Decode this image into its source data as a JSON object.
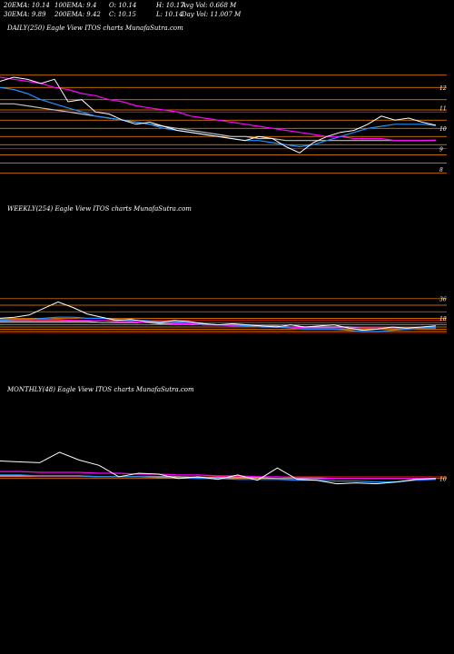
{
  "stats": {
    "row1": [
      "20EMA: 10.14",
      "100EMA: 9.4",
      "O: 10.14",
      "H: 10.17",
      "Avg Vol: 0.668  M"
    ],
    "row2": [
      "30EMA: 9.89",
      "200EMA: 9.42",
      "C: 10.15",
      "L: 10.14",
      "Day Vol: 11.007 M"
    ]
  },
  "colors": {
    "background": "#000000",
    "price": "#ffffff",
    "ema_short": "#1e90ff",
    "ema_mid": "#ff00ff",
    "ema_long": "#c0c0c0",
    "levels": "#ff8c00",
    "levels_red": "#ff2222"
  },
  "chart_data": [
    {
      "type": "line",
      "panel": "daily",
      "label": "DAILY(250) Eagle   View  ITOS charts MunafaSutra.com",
      "y_ticks": [
        "12",
        "11",
        "10",
        "9",
        "8"
      ],
      "series": [
        {
          "role": "price",
          "values": [
            12.3,
            12.5,
            12.4,
            12.2,
            12.4,
            11.3,
            11.4,
            10.8,
            10.7,
            10.4,
            10.2,
            10.3,
            10.1,
            9.9,
            9.8,
            9.7,
            9.6,
            9.5,
            9.4,
            9.6,
            9.5,
            9.1,
            8.8,
            9.3,
            9.6,
            9.8,
            9.9,
            10.2,
            10.6,
            10.4,
            10.5,
            10.3,
            10.15
          ]
        },
        {
          "role": "ema_short",
          "values": [
            12.0,
            11.9,
            11.7,
            11.4,
            11.2,
            11.0,
            10.8,
            10.6,
            10.5,
            10.4,
            10.3,
            10.2,
            10.0,
            9.9,
            9.8,
            9.7,
            9.6,
            9.5,
            9.4,
            9.4,
            9.3,
            9.2,
            9.1,
            9.2,
            9.4,
            9.6,
            9.8,
            10.0,
            10.1,
            10.2,
            10.2,
            10.2,
            10.14
          ]
        },
        {
          "role": "ema_mid",
          "values": [
            12.5,
            12.4,
            12.3,
            12.2,
            12.0,
            11.9,
            11.7,
            11.6,
            11.4,
            11.3,
            11.1,
            11.0,
            10.9,
            10.8,
            10.6,
            10.5,
            10.4,
            10.3,
            10.2,
            10.1,
            10.0,
            9.9,
            9.8,
            9.7,
            9.6,
            9.6,
            9.5,
            9.5,
            9.5,
            9.4,
            9.4,
            9.4,
            9.4
          ]
        },
        {
          "role": "ema_long",
          "values": [
            11.2,
            11.2,
            11.1,
            11.0,
            10.9,
            10.8,
            10.7,
            10.6,
            10.5,
            10.4,
            10.3,
            10.2,
            10.1,
            10.0,
            9.9,
            9.8,
            9.7,
            9.6,
            9.6,
            9.5,
            9.5,
            9.4,
            9.4,
            9.4,
            9.4,
            9.4,
            9.4,
            9.4,
            9.4,
            9.4,
            9.4,
            9.4,
            9.42
          ]
        }
      ],
      "levels": [
        12.6,
        12.0,
        11.4,
        10.9,
        10.4,
        10.0,
        9.6,
        9.2,
        8.7,
        8.3,
        7.8
      ],
      "levels_red": [
        10.8,
        9.0
      ],
      "ylim": [
        6.5,
        14.5
      ]
    },
    {
      "type": "line",
      "panel": "weekly",
      "label": "WEEKLY(254) Eagle   View  ITOS charts MunafaSutra.com",
      "y_ticks": [
        "36",
        "18"
      ],
      "series": [
        {
          "role": "price",
          "values": [
            18,
            19,
            21,
            27,
            33,
            28,
            22,
            19,
            16,
            17,
            15,
            14,
            16,
            15,
            13,
            12,
            13,
            12,
            11,
            10,
            12,
            10,
            11,
            12,
            9,
            7,
            8,
            10,
            9,
            10,
            11
          ]
        },
        {
          "role": "ema_short",
          "values": [
            16,
            17,
            17,
            18,
            19,
            19,
            18,
            18,
            17,
            16,
            16,
            15,
            15,
            14,
            13,
            12,
            12,
            11,
            10,
            10,
            9,
            8,
            8,
            8,
            7,
            6,
            6,
            7,
            8,
            9,
            10
          ]
        },
        {
          "role": "ema_mid",
          "values": [
            17,
            17,
            17,
            17,
            17,
            16,
            16,
            16,
            15,
            15,
            14,
            14,
            13,
            13,
            12,
            12,
            11,
            11,
            10,
            10,
            10,
            9,
            9,
            9,
            9,
            9,
            9,
            9,
            9,
            9,
            9
          ]
        },
        {
          "role": "ema_long",
          "values": [
            15,
            15,
            15,
            15,
            15,
            15,
            15,
            14,
            14,
            14,
            14,
            13,
            13,
            13,
            12,
            12,
            12,
            11,
            11,
            11,
            10,
            10,
            10,
            10,
            10,
            9,
            9,
            9,
            9,
            9,
            9
          ]
        }
      ],
      "levels": [
        36,
        30,
        24,
        18,
        14,
        12,
        10,
        8,
        6
      ],
      "levels_red": [
        16,
        5
      ],
      "ylim": [
        -40,
        110
      ]
    },
    {
      "type": "line",
      "panel": "monthly",
      "label": "MONTHLY(48) Eagle   View  ITOS charts MunafaSutra.com",
      "y_ticks": [
        "10"
      ],
      "series": [
        {
          "role": "price",
          "values": [
            30,
            29,
            28,
            40,
            31,
            25,
            12,
            16,
            15,
            10,
            12,
            9,
            14,
            8,
            22,
            9,
            8,
            4,
            5,
            4,
            6,
            9,
            10
          ]
        },
        {
          "role": "ema_short",
          "values": [
            14,
            14,
            13,
            13,
            13,
            12,
            12,
            12,
            11,
            11,
            10,
            10,
            9,
            9,
            9,
            8,
            8,
            7,
            7,
            6,
            6,
            8,
            9
          ]
        },
        {
          "role": "ema_mid",
          "values": [
            18,
            18,
            17,
            17,
            17,
            16,
            16,
            15,
            15,
            14,
            14,
            13,
            13,
            12,
            12,
            11,
            11,
            10,
            10,
            10,
            10,
            10,
            10
          ]
        },
        {
          "role": "ema_long",
          "values": [
            13,
            13,
            13,
            13,
            13,
            12,
            12,
            12,
            12,
            12,
            11,
            11,
            11,
            11,
            10,
            10,
            10,
            10,
            10,
            10,
            10,
            10,
            10
          ]
        }
      ],
      "levels": [
        10
      ],
      "levels_red": [
        12
      ],
      "ylim": [
        -180,
        100
      ]
    }
  ]
}
